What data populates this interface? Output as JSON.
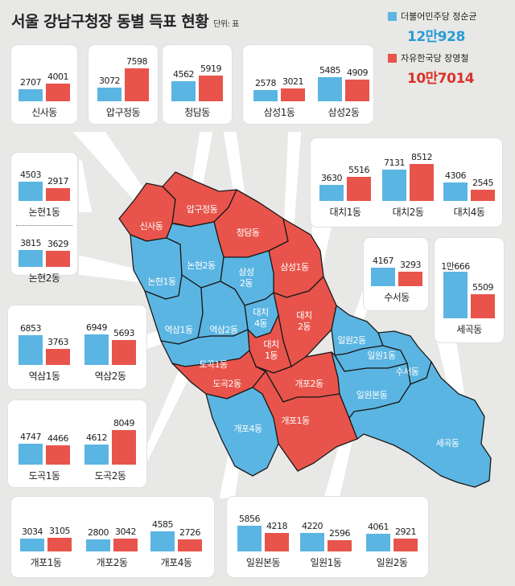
{
  "title": "서울 강남구청장 동별 득표 현황",
  "unit": "단위: 표",
  "legend": [
    {
      "party": "더불어민주당 정순균",
      "total": "12만928",
      "color": "#5bb5e2"
    },
    {
      "party": "자유한국당 장영철",
      "total": "10만7014",
      "color": "#e8544b"
    }
  ],
  "chart_data": {
    "type": "bar",
    "series": [
      {
        "name": "더불어민주당 정순균"
      },
      {
        "name": "자유한국당 장영철"
      }
    ],
    "categories": [
      "신사동",
      "압구정동",
      "청담동",
      "삼성1동",
      "삼성2동",
      "대치1동",
      "대치2동",
      "대치4동",
      "논현1동",
      "논현2동",
      "수서동",
      "세곡동",
      "역삼1동",
      "역삼2동",
      "도곡1동",
      "도곡2동",
      "개포1동",
      "개포2동",
      "개포4동",
      "일원본동",
      "일원1동",
      "일원2동"
    ],
    "values": [
      [
        2707,
        4001
      ],
      [
        3072,
        7598
      ],
      [
        4562,
        5919
      ],
      [
        2578,
        3021
      ],
      [
        5485,
        4909
      ],
      [
        3630,
        5516
      ],
      [
        7131,
        8512
      ],
      [
        4306,
        2545
      ],
      [
        4503,
        2917
      ],
      [
        3815,
        3629
      ],
      [
        4167,
        3293
      ],
      [
        10666,
        5509
      ],
      [
        6853,
        3763
      ],
      [
        6949,
        5693
      ],
      [
        4747,
        4466
      ],
      [
        4612,
        8049
      ],
      [
        3034,
        3105
      ],
      [
        2800,
        3042
      ],
      [
        4585,
        2726
      ],
      [
        5856,
        4218
      ],
      [
        4220,
        2596
      ],
      [
        4061,
        2921
      ]
    ],
    "labels": [
      [
        "2707",
        "4001"
      ],
      [
        "3072",
        "7598"
      ],
      [
        "4562",
        "5919"
      ],
      [
        "2578",
        "3021"
      ],
      [
        "5485",
        "4909"
      ],
      [
        "3630",
        "5516"
      ],
      [
        "7131",
        "8512"
      ],
      [
        "4306",
        "2545"
      ],
      [
        "4503",
        "2917"
      ],
      [
        "3815",
        "3629"
      ],
      [
        "4167",
        "3293"
      ],
      [
        "1만666",
        "5509"
      ],
      [
        "6853",
        "3763"
      ],
      [
        "6949",
        "5693"
      ],
      [
        "4747",
        "4466"
      ],
      [
        "4612",
        "8049"
      ],
      [
        "3034",
        "3105"
      ],
      [
        "2800",
        "3042"
      ],
      [
        "4585",
        "2726"
      ],
      [
        "5856",
        "4218"
      ],
      [
        "4220",
        "2596"
      ],
      [
        "4061",
        "2921"
      ]
    ]
  },
  "map": {
    "colors": {
      "blue": "#5bb5e2",
      "red": "#e8544b"
    },
    "districts": [
      {
        "label": "신사동",
        "winner": "red"
      },
      {
        "label": "압구정동",
        "winner": "red"
      },
      {
        "label": "청담동",
        "winner": "red"
      },
      {
        "label": "삼성1동",
        "winner": "red"
      },
      {
        "label": "논현1동",
        "winner": "blue"
      },
      {
        "label": "논현2동",
        "winner": "blue"
      },
      {
        "label": "삼성",
        "label2": "2동",
        "winner": "blue"
      },
      {
        "label": "대치",
        "label2": "4동",
        "winner": "blue"
      },
      {
        "label": "대치",
        "label2": "2동",
        "winner": "red"
      },
      {
        "label": "역삼1동",
        "winner": "blue"
      },
      {
        "label": "역삼2동",
        "winner": "blue"
      },
      {
        "label": "대치",
        "label2": "1동",
        "winner": "red"
      },
      {
        "label": "도곡1동",
        "winner": "blue"
      },
      {
        "label": "도곡2동",
        "winner": "red"
      },
      {
        "label": "개포2동",
        "winner": "red"
      },
      {
        "label": "개포4동",
        "winner": "blue"
      },
      {
        "label": "개포1동",
        "winner": "red"
      },
      {
        "label": "일원2동",
        "winner": "blue"
      },
      {
        "label": "일원1동",
        "winner": "blue"
      },
      {
        "label": "수서동",
        "winner": "blue"
      },
      {
        "label": "일원본동",
        "winner": "blue"
      },
      {
        "label": "세곡동",
        "winner": "blue"
      }
    ]
  }
}
